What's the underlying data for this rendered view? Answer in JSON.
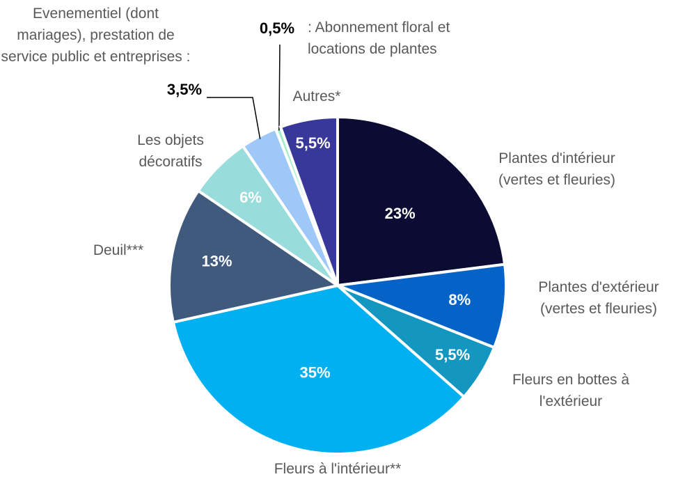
{
  "chart_data": {
    "type": "pie",
    "categories": [
      "Plantes d'intérieur (vertes et fleuries)",
      "Plantes d'extérieur (vertes et fleuries)",
      "Fleurs en bottes à l'extérieur",
      "Fleurs à l'intérieur**",
      "Deuil***",
      "Les objets décoratifs",
      "Evenementiel (dont mariages), prestation de service public et entreprises :",
      ": Abonnement floral et locations de plantes",
      "Autres*"
    ],
    "values": [
      23,
      8,
      5.5,
      35,
      13,
      6,
      3.5,
      0.5,
      5.5
    ],
    "value_labels": [
      "23%",
      "8%",
      "5,5%",
      "35%",
      "13%",
      "6%",
      "3,5%",
      "0,5%",
      "5,5%"
    ],
    "colors": [
      "#0b0b33",
      "#0563c8",
      "#1396c0",
      "#00b0f0",
      "#3f5a7d",
      "#99dcdc",
      "#9dc8f8",
      "#9ff0c8",
      "#38389a"
    ]
  }
}
